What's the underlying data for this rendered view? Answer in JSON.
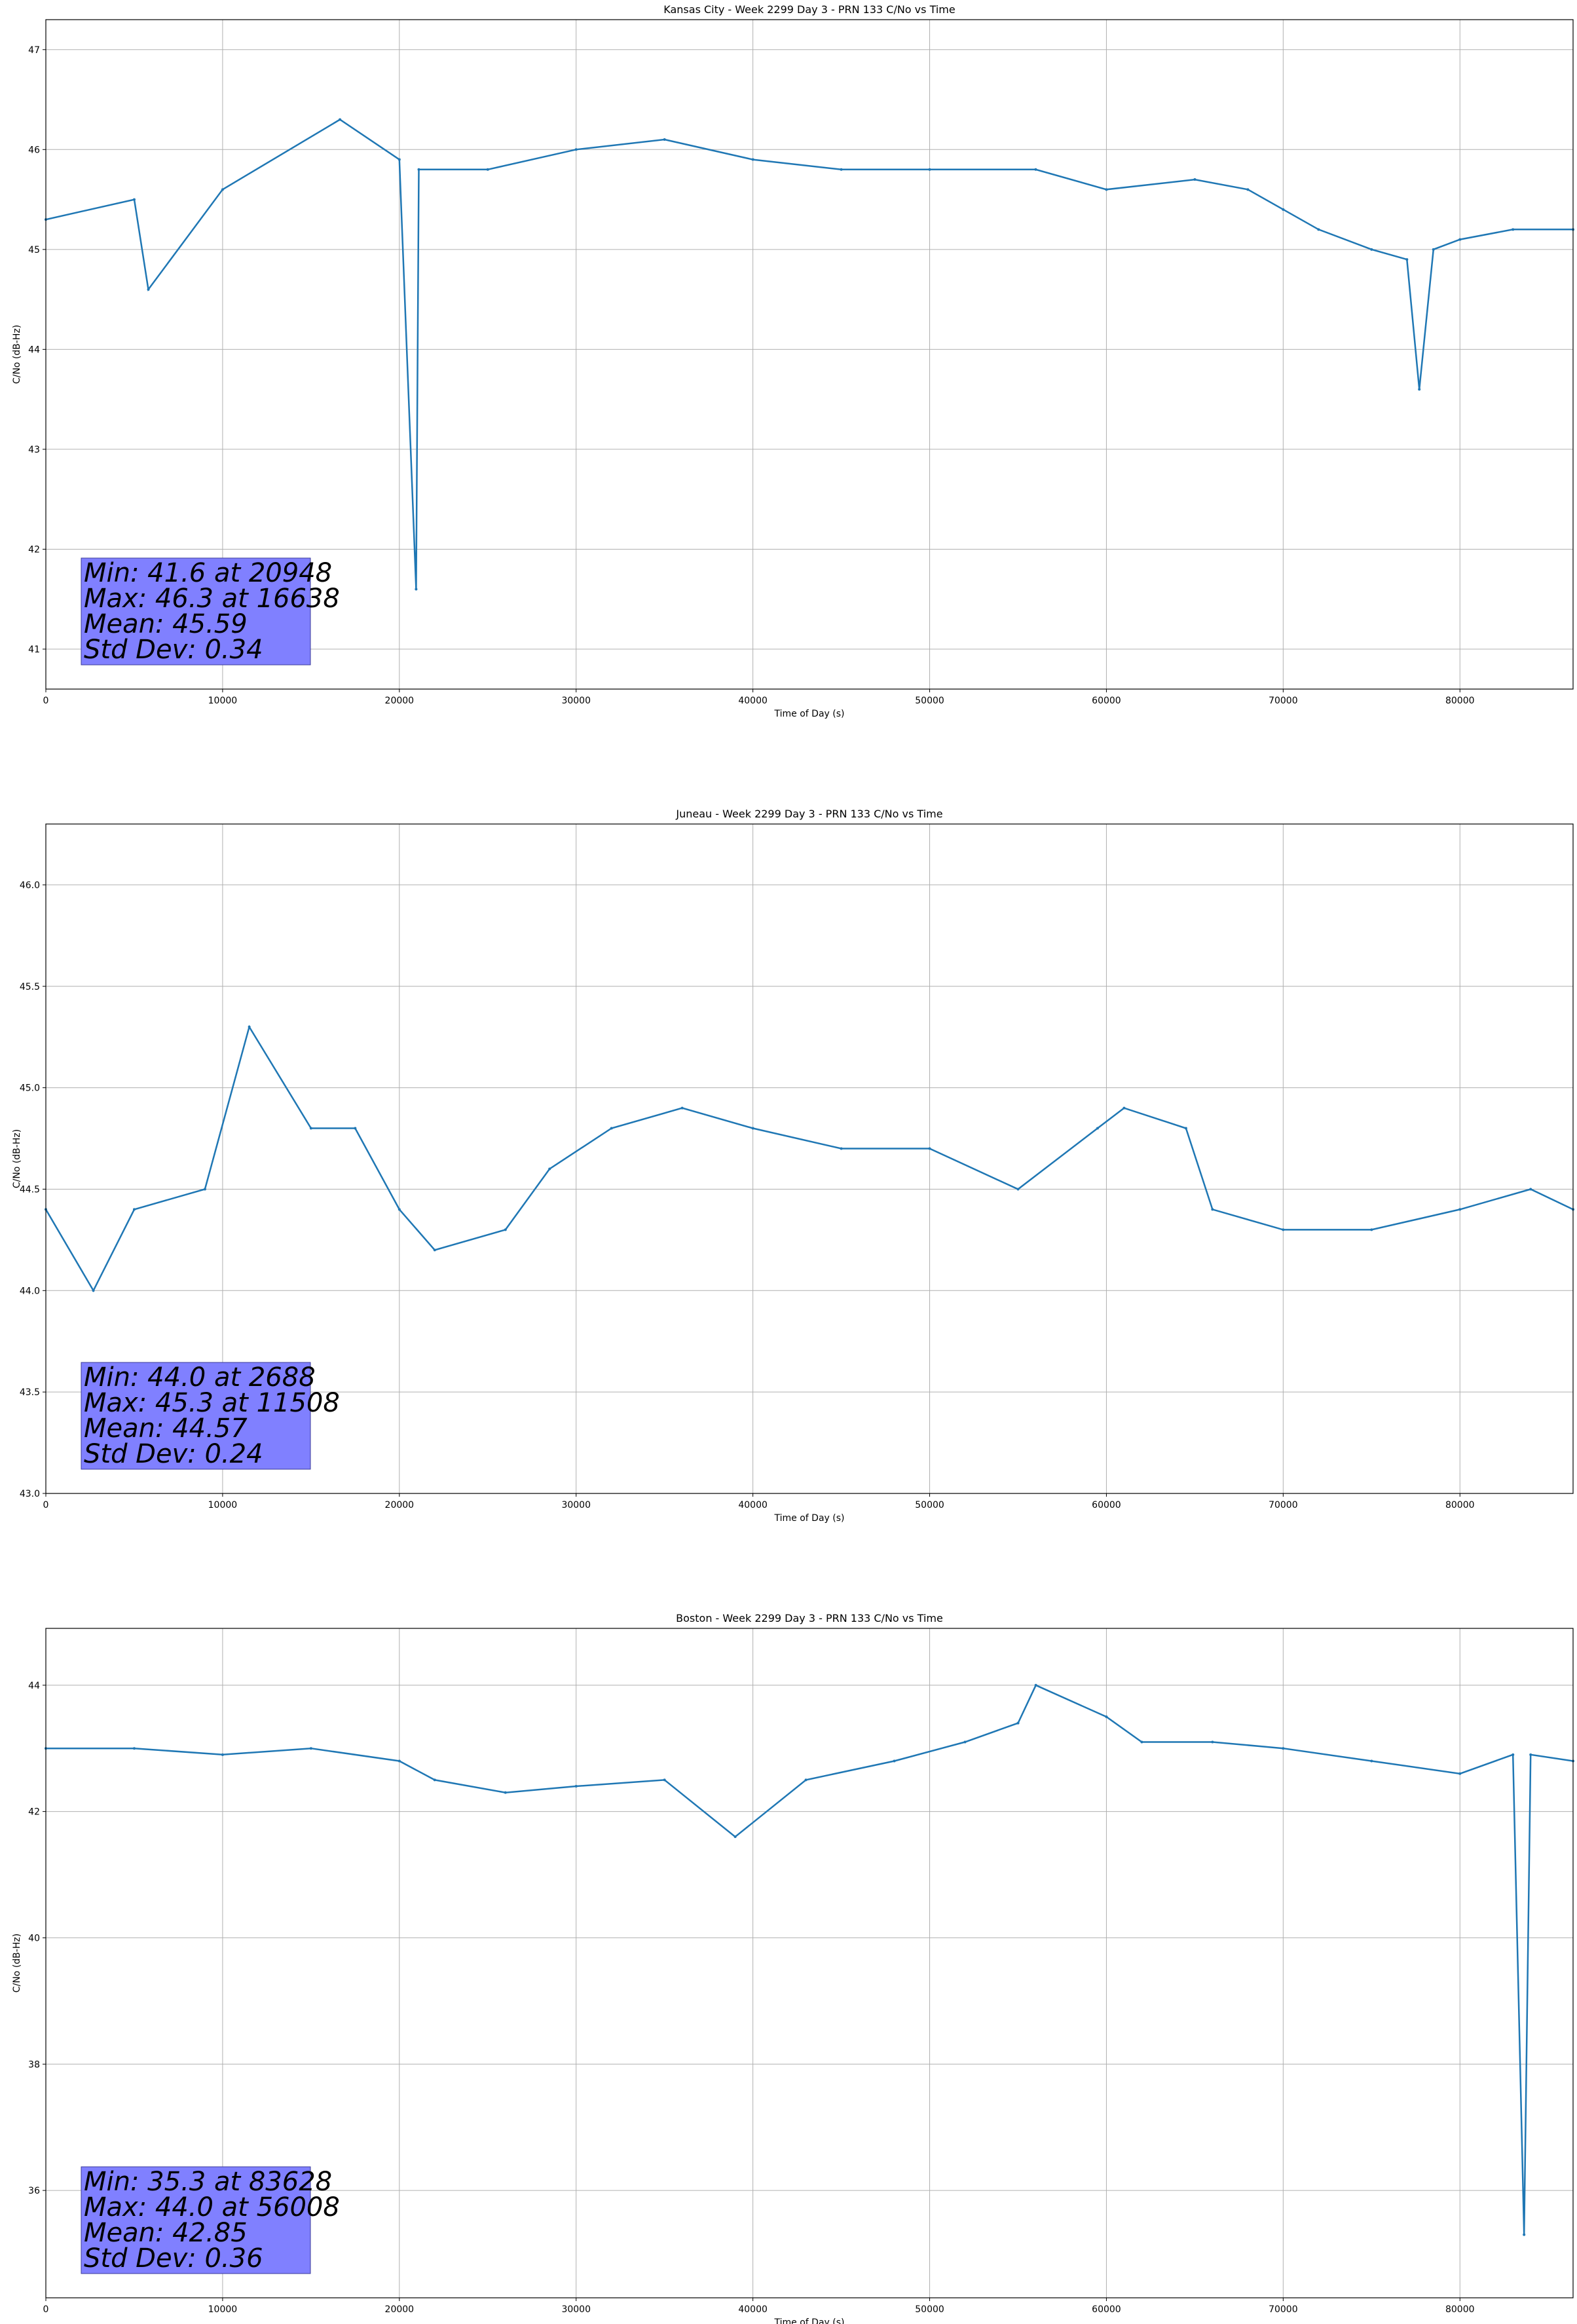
{
  "chart_data": [
    {
      "type": "line",
      "title": "Kansas City - Week 2299 Day 3 - PRN 133 C/No vs Time",
      "xlabel": "Time of Day (s)",
      "ylabel": "C/No (dB-Hz)",
      "xlim": [
        0,
        86400
      ],
      "ylim": [
        40.6,
        47.3
      ],
      "xticks": [
        0,
        10000,
        20000,
        30000,
        40000,
        50000,
        60000,
        70000,
        80000
      ],
      "yticks": [
        41,
        42,
        43,
        44,
        45,
        46,
        47
      ],
      "grid": true,
      "color": "#1f77b4",
      "series": [
        {
          "x": [
            0,
            5000,
            5800,
            10000,
            16638,
            20000,
            20948,
            21100,
            25000,
            30000,
            35000,
            40000,
            45000,
            50000,
            56000,
            60000,
            65000,
            68000,
            70000,
            72000,
            75000,
            77000,
            77700,
            78500,
            80000,
            83000,
            86400
          ],
          "y": [
            45.3,
            45.5,
            44.6,
            45.6,
            46.3,
            45.9,
            41.6,
            45.8,
            45.8,
            46.0,
            46.1,
            45.9,
            45.8,
            45.8,
            45.8,
            45.6,
            45.7,
            45.6,
            45.4,
            45.2,
            45.0,
            44.9,
            43.6,
            45.0,
            45.1,
            45.2,
            45.2
          ]
        }
      ],
      "stats": [
        "Min: 41.6 at 20948",
        "Max: 46.3 at 16638",
        "Mean: 45.59",
        "Std Dev: 0.34"
      ]
    },
    {
      "type": "line",
      "title": "Juneau - Week 2299 Day 3 - PRN 133 C/No vs Time",
      "xlabel": "Time of Day (s)",
      "ylabel": "C/No (dB-Hz)",
      "xlim": [
        0,
        86400
      ],
      "ylim": [
        43.0,
        46.3
      ],
      "xticks": [
        0,
        10000,
        20000,
        30000,
        40000,
        50000,
        60000,
        70000,
        80000
      ],
      "yticks": [
        43.0,
        43.5,
        44.0,
        44.5,
        45.0,
        45.5,
        46.0
      ],
      "grid": true,
      "color": "#1f77b4",
      "series": [
        {
          "x": [
            0,
            2688,
            5000,
            9000,
            11508,
            15000,
            17500,
            20000,
            22000,
            26000,
            28500,
            32000,
            36000,
            40000,
            45000,
            50000,
            55000,
            59500,
            61000,
            64500,
            66000,
            70000,
            75000,
            80000,
            84000,
            86400
          ],
          "y": [
            44.4,
            44.0,
            44.4,
            44.5,
            45.3,
            44.8,
            44.8,
            44.4,
            44.2,
            44.3,
            44.6,
            44.8,
            44.9,
            44.8,
            44.7,
            44.7,
            44.5,
            44.8,
            44.9,
            44.8,
            44.4,
            44.3,
            44.3,
            44.4,
            44.5,
            44.4
          ]
        }
      ],
      "stats": [
        "Min: 44.0 at 2688",
        "Max: 45.3 at 11508",
        "Mean: 44.57",
        "Std Dev: 0.24"
      ]
    },
    {
      "type": "line",
      "title": "Boston - Week 2299 Day 3 - PRN 133 C/No vs Time",
      "xlabel": "Time of Day (s)",
      "ylabel": "C/No (dB-Hz)",
      "xlim": [
        0,
        86400
      ],
      "ylim": [
        34.3,
        44.9
      ],
      "xticks": [
        0,
        10000,
        20000,
        30000,
        40000,
        50000,
        60000,
        70000,
        80000
      ],
      "yticks": [
        36,
        38,
        40,
        42,
        44
      ],
      "grid": true,
      "color": "#1f77b4",
      "series": [
        {
          "x": [
            0,
            5000,
            10000,
            15000,
            20000,
            22000,
            26000,
            30000,
            35000,
            39000,
            43000,
            48000,
            52000,
            55000,
            56008,
            60000,
            62000,
            66000,
            70000,
            75000,
            80000,
            83000,
            83628,
            84000,
            86400
          ],
          "y": [
            43.0,
            43.0,
            42.9,
            43.0,
            42.8,
            42.5,
            42.3,
            42.4,
            42.5,
            41.6,
            42.5,
            42.8,
            43.1,
            43.4,
            44.0,
            43.5,
            43.1,
            43.1,
            43.0,
            42.8,
            42.6,
            42.9,
            35.3,
            42.9,
            42.8
          ]
        }
      ],
      "stats": [
        "Min: 35.3 at 83628",
        "Max: 44.0 at 56008",
        "Mean: 42.85",
        "Std Dev: 0.36"
      ]
    }
  ]
}
